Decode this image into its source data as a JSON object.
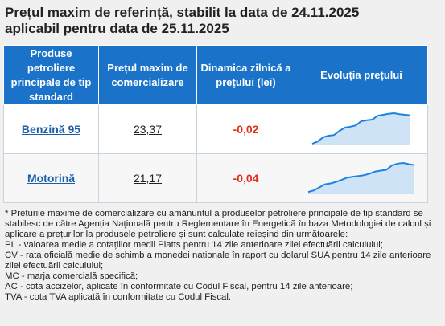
{
  "title": {
    "line1": "Prețul maxim de referință, stabilit la data de 24.11.2025",
    "line2": "aplicabil pentru data de 25.11.2025"
  },
  "table": {
    "headers": [
      "Produse petroliere principale de tip standard",
      "Prețul maxim de comercializare",
      "Dinamica zilnică a prețului (lei)",
      "Evoluția prețului"
    ],
    "rows": [
      {
        "product": "Benzină 95",
        "price": "23,37",
        "dynamic": "-0,02",
        "trend": [
          0.05,
          0.12,
          0.25,
          0.3,
          0.32,
          0.45,
          0.55,
          0.58,
          0.62,
          0.75,
          0.78,
          0.8,
          0.92,
          0.95,
          0.98,
          1.0,
          0.97,
          0.95,
          0.93
        ]
      },
      {
        "product": "Motorină",
        "price": "21,17",
        "dynamic": "-0,04",
        "trend": [
          0.05,
          0.1,
          0.2,
          0.3,
          0.33,
          0.38,
          0.45,
          0.52,
          0.55,
          0.57,
          0.6,
          0.65,
          0.72,
          0.75,
          0.78,
          0.92,
          0.98,
          1.0,
          0.96,
          0.93
        ]
      }
    ]
  },
  "colors": {
    "header_bg": "#1a73c9",
    "spark_line": "#1e82e0",
    "spark_fill": "#cfe3f7",
    "negative": "#e0301e"
  },
  "notes": [
    "* Prețurile maxime de comercializare cu amănuntul a produselor petroliere principale de tip standard se stabilesc de către Agenția Națională pentru Reglementare în Energetică în baza Metodologiei de calcul și aplicare a prețurilor la produsele petroliere și sunt calculate reieșind din următoarele:",
    "PL - valoarea medie a cotațiilor medii Platts pentru 14 zile anterioare zilei efectuării calculului;",
    "CV - rata oficială medie de schimb a monedei naționale în raport cu dolarul SUA pentru 14 zile anterioare zilei efectuării calculului;",
    "MC - marja comercială specifică;",
    "AC - cota accizelor, aplicate în conformitate cu Codul Fiscal, pentru 14 zile anterioare;",
    "TVA - cota TVA aplicată în conformitate cu Codul Fiscal."
  ]
}
